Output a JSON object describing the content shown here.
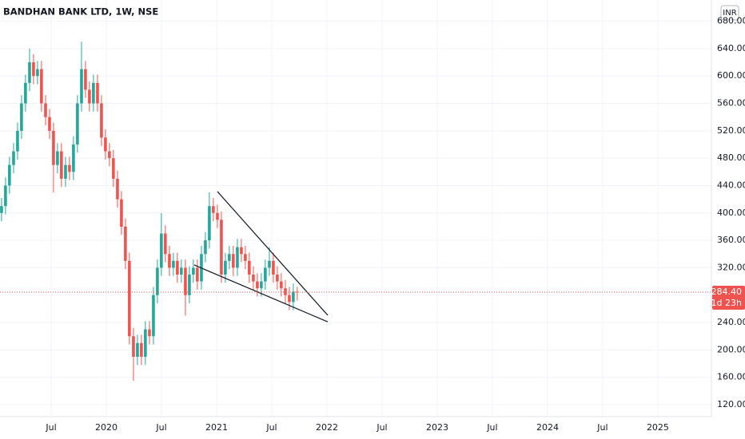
{
  "chart_data": {
    "type": "candlestick",
    "title": "BANDHAN BANK LTD, 1W, NSE",
    "currency": "INR",
    "up_color": "#26a69a",
    "down_color": "#ef5350",
    "grid": true,
    "xlim": [
      2019.036,
      2025.486
    ],
    "ylim": [
      102.5,
      711
    ],
    "xticks": [
      {
        "value": 2019.5,
        "label": "Jul"
      },
      {
        "value": 2020,
        "label": "2020"
      },
      {
        "value": 2020.5,
        "label": "Jul"
      },
      {
        "value": 2021,
        "label": "2021"
      },
      {
        "value": 2021.5,
        "label": "Jul"
      },
      {
        "value": 2022,
        "label": "2022"
      },
      {
        "value": 2022.5,
        "label": "Jul"
      },
      {
        "value": 2023,
        "label": "2023"
      },
      {
        "value": 2023.5,
        "label": "Jul"
      },
      {
        "value": 2024,
        "label": "2024"
      },
      {
        "value": 2024.5,
        "label": "Jul"
      },
      {
        "value": 2025,
        "label": "2025"
      }
    ],
    "yticks": [
      {
        "value": 120,
        "label": "120.00"
      },
      {
        "value": 160,
        "label": "160.00"
      },
      {
        "value": 200,
        "label": "200.00"
      },
      {
        "value": 240,
        "label": "240.00"
      },
      {
        "value": 280,
        "label": "280.00"
      },
      {
        "value": 320,
        "label": "320.00"
      },
      {
        "value": 360,
        "label": "360.00"
      },
      {
        "value": 400,
        "label": "400.00"
      },
      {
        "value": 440,
        "label": "440.00"
      },
      {
        "value": 480,
        "label": "480.00"
      },
      {
        "value": 520,
        "label": "520.00"
      },
      {
        "value": 560,
        "label": "560.00"
      },
      {
        "value": 600,
        "label": "600.00"
      },
      {
        "value": 640,
        "label": "640.00"
      },
      {
        "value": 680,
        "label": "680.00"
      }
    ],
    "x": [
      2019.05,
      2019.086,
      2019.122,
      2019.159,
      2019.195,
      2019.231,
      2019.267,
      2019.304,
      2019.34,
      2019.376,
      2019.412,
      2019.449,
      2019.485,
      2019.521,
      2019.557,
      2019.593,
      2019.63,
      2019.666,
      2019.702,
      2019.738,
      2019.775,
      2019.811,
      2019.847,
      2019.883,
      2019.92,
      2019.956,
      2019.992,
      2020.028,
      2020.064,
      2020.101,
      2020.137,
      2020.173,
      2020.209,
      2020.246,
      2020.282,
      2020.318,
      2020.354,
      2020.391,
      2020.427,
      2020.463,
      2020.499,
      2020.535,
      2020.572,
      2020.608,
      2020.644,
      2020.68,
      2020.717,
      2020.753,
      2020.789,
      2020.825,
      2020.862,
      2020.898,
      2020.934,
      2020.97,
      2021.007,
      2021.043,
      2021.079,
      2021.115,
      2021.151,
      2021.188,
      2021.224,
      2021.26,
      2021.296,
      2021.333,
      2021.369,
      2021.405,
      2021.441,
      2021.478,
      2021.514,
      2021.55,
      2021.586,
      2021.623,
      2021.659,
      2021.695,
      2021.731
    ],
    "open": [
      400,
      410,
      440,
      470,
      490,
      520,
      560,
      590,
      620,
      600,
      610,
      560,
      540,
      520,
      470,
      490,
      450,
      470,
      460,
      500,
      560,
      610,
      580,
      560,
      590,
      560,
      510,
      490,
      480,
      450,
      420,
      380,
      330,
      220,
      190,
      210,
      190,
      230,
      220,
      280,
      320,
      370,
      340,
      320,
      330,
      310,
      320,
      280,
      310,
      320,
      300,
      340,
      360,
      410,
      400,
      390,
      310,
      330,
      340,
      320,
      350,
      340,
      330,
      310,
      300,
      290,
      300,
      320,
      330,
      310,
      300,
      290,
      280,
      270,
      285
    ],
    "high": [
      422,
      452,
      482,
      502,
      532,
      572,
      602,
      640,
      632,
      622,
      622,
      572,
      552,
      532,
      502,
      502,
      482,
      482,
      512,
      572,
      650,
      622,
      592,
      602,
      602,
      572,
      522,
      502,
      492,
      462,
      432,
      392,
      342,
      232,
      222,
      222,
      242,
      242,
      292,
      332,
      400,
      382,
      352,
      342,
      342,
      332,
      332,
      322,
      332,
      332,
      352,
      372,
      430,
      422,
      412,
      402,
      342,
      352,
      352,
      362,
      362,
      352,
      342,
      322,
      312,
      312,
      332,
      350,
      342,
      322,
      312,
      302,
      292,
      297,
      292
    ],
    "low": [
      388,
      398,
      428,
      458,
      478,
      508,
      548,
      578,
      588,
      588,
      548,
      528,
      508,
      430,
      458,
      438,
      438,
      448,
      448,
      488,
      548,
      568,
      548,
      548,
      548,
      498,
      478,
      468,
      438,
      408,
      368,
      318,
      208,
      155,
      178,
      178,
      178,
      208,
      208,
      268,
      308,
      328,
      308,
      308,
      298,
      298,
      250,
      268,
      298,
      288,
      288,
      328,
      348,
      388,
      378,
      298,
      298,
      318,
      308,
      308,
      328,
      318,
      298,
      288,
      278,
      278,
      288,
      308,
      298,
      288,
      278,
      268,
      258,
      258,
      272
    ],
    "close": [
      410,
      440,
      470,
      490,
      520,
      560,
      590,
      620,
      600,
      610,
      560,
      540,
      520,
      470,
      490,
      450,
      470,
      460,
      500,
      560,
      610,
      580,
      560,
      590,
      560,
      510,
      490,
      480,
      450,
      420,
      380,
      330,
      220,
      190,
      210,
      190,
      230,
      220,
      280,
      320,
      370,
      340,
      320,
      330,
      310,
      320,
      280,
      310,
      320,
      300,
      340,
      360,
      410,
      400,
      390,
      310,
      330,
      340,
      320,
      350,
      340,
      330,
      310,
      300,
      290,
      300,
      320,
      330,
      310,
      300,
      290,
      280,
      270,
      285,
      284.4
    ],
    "trendlines": [
      {
        "x": [
          2021.007,
          2022.007
        ],
        "y": [
          431.3,
          250.6
        ]
      },
      {
        "x": [
          2020.797,
          2022.007
        ],
        "y": [
          324,
          241
        ]
      }
    ],
    "last_price": {
      "value": 284.4,
      "label": "284.40"
    },
    "countdown": "1d 23h"
  }
}
